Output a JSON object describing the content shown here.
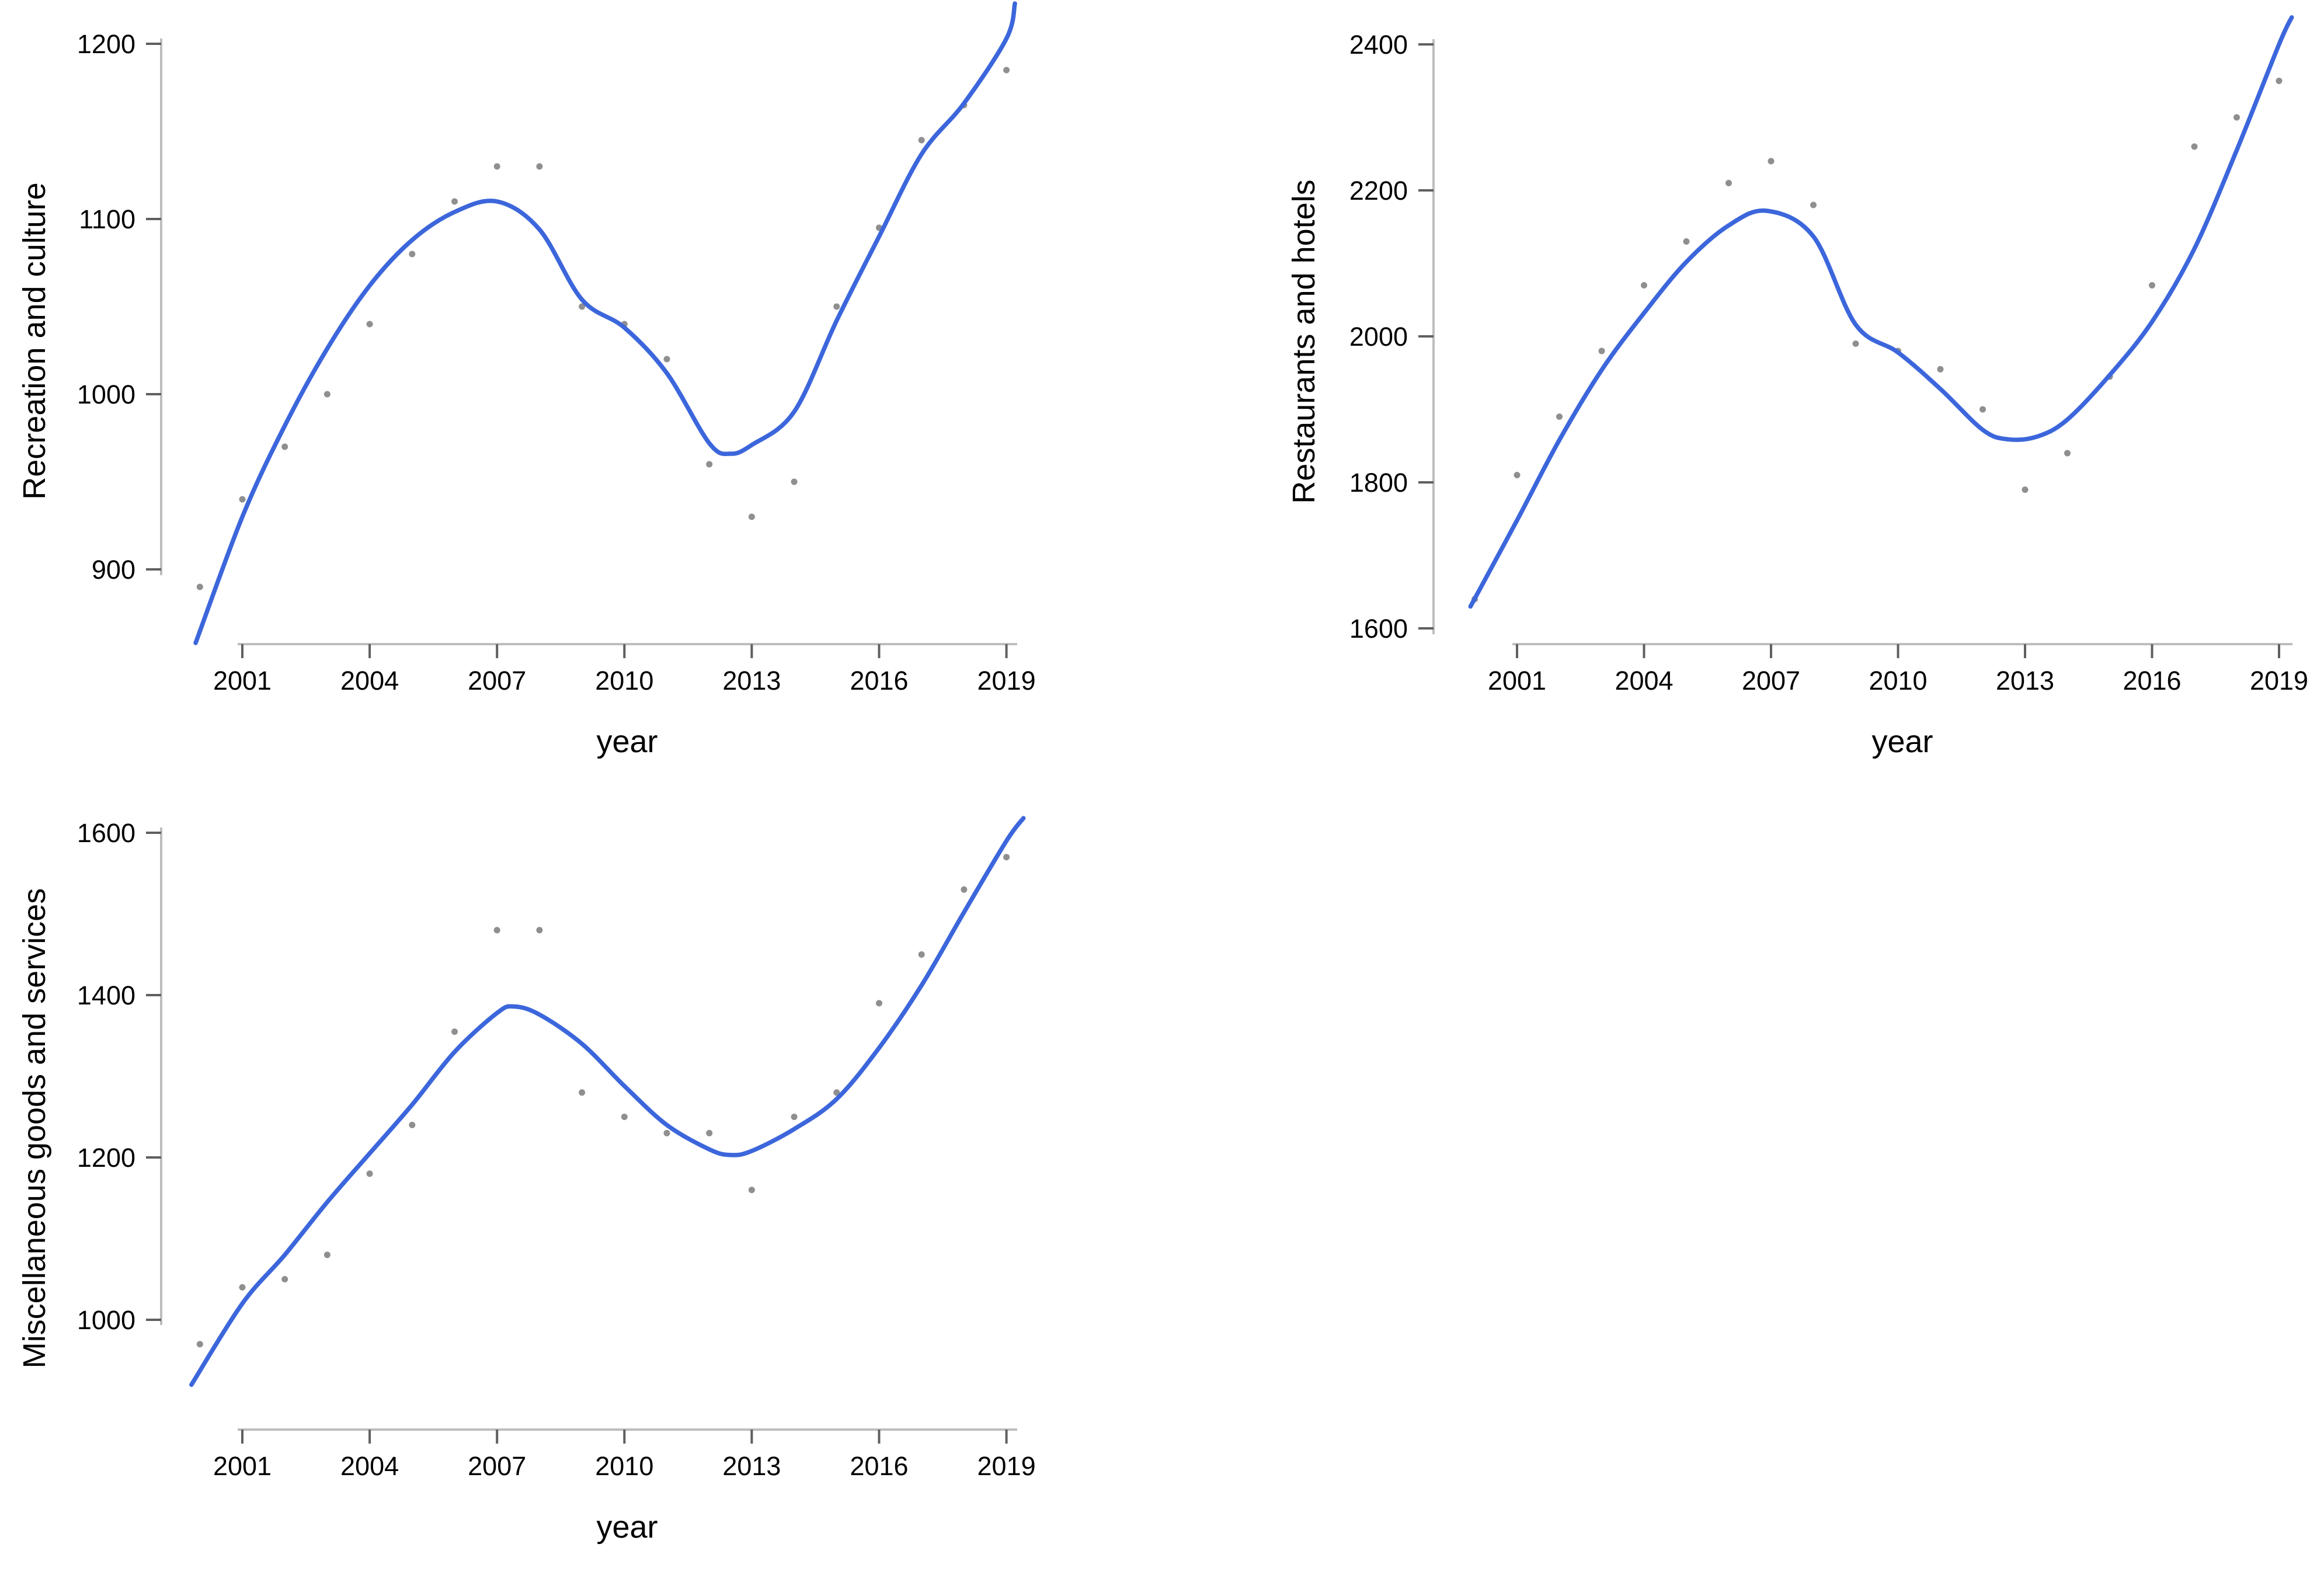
{
  "page": {
    "background": "#FFFFFF"
  },
  "chart_data": [
    {
      "type": "scatter",
      "title": "",
      "ylabel": "Recreation and culture",
      "xlabel": "year",
      "x": [
        2000,
        2001,
        2002,
        2003,
        2004,
        2005,
        2006,
        2007,
        2008,
        2009,
        2010,
        2011,
        2012,
        2013,
        2014,
        2015,
        2016,
        2017,
        2018,
        2019
      ],
      "values": [
        890,
        940,
        970,
        1000,
        1040,
        1080,
        1110,
        1130,
        1130,
        1050,
        1040,
        1020,
        960,
        930,
        950,
        1050,
        1095,
        1145,
        1165,
        1185
      ],
      "trend_line": [
        [
          1999.9,
          858
        ],
        [
          2001,
          930
        ],
        [
          2002,
          982
        ],
        [
          2003,
          1026
        ],
        [
          2004,
          1062
        ],
        [
          2005,
          1088
        ],
        [
          2006,
          1104
        ],
        [
          2007,
          1110
        ],
        [
          2008,
          1094
        ],
        [
          2009,
          1054
        ],
        [
          2010,
          1038
        ],
        [
          2011,
          1012
        ],
        [
          2012,
          972
        ],
        [
          2012.5,
          966
        ],
        [
          2013,
          971
        ],
        [
          2014,
          990
        ],
        [
          2015,
          1042
        ],
        [
          2016,
          1090
        ],
        [
          2017,
          1137
        ],
        [
          2018,
          1166
        ],
        [
          2019,
          1203
        ],
        [
          2019.2,
          1223
        ]
      ],
      "x_ticks": [
        2001,
        2004,
        2007,
        2010,
        2013,
        2016,
        2019
      ],
      "y_ticks": [
        900,
        1000,
        1100,
        1200
      ],
      "ylim": [
        860,
        1225
      ],
      "xlim": [
        1999.5,
        2019.6
      ],
      "grid": false,
      "legend": "none",
      "point_color": "#8F8F8F",
      "line_color": "#3C66DB",
      "axis_line_color": "#BDBDBD",
      "tick_mark_color": "#5F5F5F",
      "text_color": "#000000"
    },
    {
      "type": "scatter",
      "title": "",
      "ylabel": "Restaurants and hotels",
      "xlabel": "year",
      "x": [
        2000,
        2001,
        2002,
        2003,
        2004,
        2005,
        2006,
        2007,
        2008,
        2009,
        2010,
        2011,
        2012,
        2013,
        2014,
        2015,
        2016,
        2017,
        2018,
        2019
      ],
      "values": [
        1640,
        1810,
        1890,
        1980,
        2070,
        2130,
        2210,
        2240,
        2180,
        1990,
        1980,
        1955,
        1900,
        1790,
        1840,
        1945,
        2070,
        2260,
        2300,
        2350
      ],
      "trend_line": [
        [
          1999.9,
          1630
        ],
        [
          2001,
          1748
        ],
        [
          2002,
          1858
        ],
        [
          2003,
          1954
        ],
        [
          2004,
          2032
        ],
        [
          2005,
          2102
        ],
        [
          2006,
          2152
        ],
        [
          2006.9,
          2172
        ],
        [
          2008,
          2137
        ],
        [
          2009,
          2016
        ],
        [
          2010,
          1978
        ],
        [
          2011,
          1928
        ],
        [
          2012,
          1872
        ],
        [
          2012.6,
          1859
        ],
        [
          2013.3,
          1863
        ],
        [
          2014,
          1886
        ],
        [
          2015,
          1947
        ],
        [
          2016,
          2020
        ],
        [
          2017,
          2120
        ],
        [
          2018,
          2255
        ],
        [
          2019,
          2400
        ],
        [
          2019.3,
          2437
        ]
      ],
      "x_ticks": [
        2001,
        2004,
        2007,
        2010,
        2013,
        2016,
        2019
      ],
      "y_ticks": [
        1600,
        1800,
        2000,
        2200,
        2400
      ],
      "ylim": [
        1500,
        2450
      ],
      "xlim": [
        1999.5,
        2019.6
      ],
      "grid": false,
      "legend": "none",
      "point_color": "#8F8F8F",
      "line_color": "#3C66DB",
      "axis_line_color": "#BDBDBD",
      "tick_mark_color": "#5F5F5F",
      "text_color": "#000000"
    },
    {
      "type": "scatter",
      "title": "",
      "ylabel": "Miscellaneous goods and services",
      "xlabel": "year",
      "x": [
        2000,
        2001,
        2002,
        2003,
        2004,
        2005,
        2006,
        2007,
        2008,
        2009,
        2010,
        2011,
        2012,
        2013,
        2014,
        2015,
        2016,
        2017,
        2018,
        2019
      ],
      "values": [
        970,
        1040,
        1050,
        1080,
        1180,
        1240,
        1355,
        1480,
        1480,
        1280,
        1250,
        1230,
        1230,
        1160,
        1250,
        1280,
        1390,
        1450,
        1530,
        1570
      ],
      "trend_line": [
        [
          1999.8,
          920
        ],
        [
          2001,
          1020
        ],
        [
          2002,
          1080
        ],
        [
          2003,
          1145
        ],
        [
          2004,
          1205
        ],
        [
          2005,
          1265
        ],
        [
          2006,
          1330
        ],
        [
          2007,
          1378
        ],
        [
          2007.4,
          1386
        ],
        [
          2008,
          1376
        ],
        [
          2009,
          1340
        ],
        [
          2010,
          1288
        ],
        [
          2011,
          1240
        ],
        [
          2012,
          1210
        ],
        [
          2012.5,
          1203
        ],
        [
          2013,
          1208
        ],
        [
          2014,
          1235
        ],
        [
          2015,
          1272
        ],
        [
          2016,
          1335
        ],
        [
          2017,
          1412
        ],
        [
          2018,
          1502
        ],
        [
          2019,
          1590
        ],
        [
          2019.4,
          1618
        ]
      ],
      "x_ticks": [
        2001,
        2004,
        2007,
        2010,
        2013,
        2016,
        2019
      ],
      "y_ticks": [
        1000,
        1200,
        1400,
        1600
      ],
      "ylim": [
        920,
        1660
      ],
      "xlim": [
        1999.5,
        2019.6
      ],
      "grid": false,
      "legend": "none",
      "point_color": "#8F8F8F",
      "line_color": "#3C66DB",
      "axis_line_color": "#BDBDBD",
      "tick_mark_color": "#5F5F5F",
      "text_color": "#000000"
    }
  ]
}
